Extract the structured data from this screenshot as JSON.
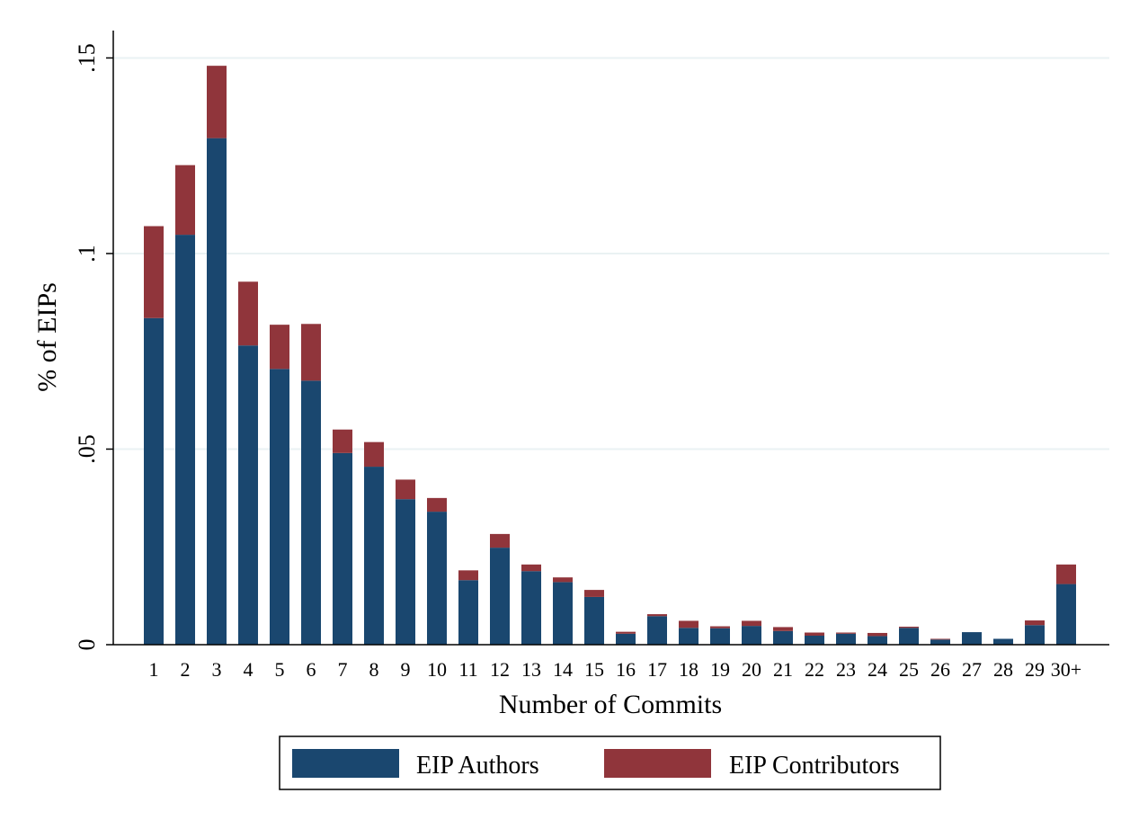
{
  "chart_data": {
    "type": "bar",
    "stacked": true,
    "categories": [
      "1",
      "2",
      "3",
      "4",
      "5",
      "6",
      "7",
      "8",
      "9",
      "10",
      "11",
      "12",
      "13",
      "14",
      "15",
      "16",
      "17",
      "18",
      "19",
      "20",
      "21",
      "22",
      "23",
      "24",
      "25",
      "26",
      "27",
      "28",
      "29",
      "30+"
    ],
    "series": [
      {
        "name": "EIP Authors",
        "color": "#1a476f",
        "values": [
          0.0835,
          0.1048,
          0.1295,
          0.0765,
          0.0705,
          0.0675,
          0.049,
          0.0455,
          0.0372,
          0.034,
          0.0165,
          0.0248,
          0.0188,
          0.016,
          0.0122,
          0.0028,
          0.0073,
          0.0043,
          0.0042,
          0.0048,
          0.0035,
          0.0023,
          0.0028,
          0.0022,
          0.0043,
          0.0013,
          0.0032,
          0.0015,
          0.005,
          0.0155
        ]
      },
      {
        "name": "EIP Contributors",
        "color": "#90353b",
        "values": [
          0.0235,
          0.0178,
          0.0185,
          0.0163,
          0.0113,
          0.0145,
          0.006,
          0.0063,
          0.005,
          0.0035,
          0.0025,
          0.0035,
          0.0017,
          0.0012,
          0.0018,
          0.0005,
          0.0005,
          0.0018,
          0.0005,
          0.0013,
          0.001,
          0.0008,
          0.0003,
          0.0008,
          0.0003,
          0.0002,
          0.0,
          0.0,
          0.0012,
          0.005
        ]
      }
    ],
    "xlabel": "Number of Commits",
    "ylabel": "% of EIPs",
    "ylim": [
      0,
      0.157
    ],
    "yticks": [
      0,
      0.05,
      0.1,
      0.15
    ],
    "ytick_labels": [
      "0",
      ".05",
      ".1",
      ".15"
    ],
    "grid": true,
    "gridline_color": "#eaf2f3",
    "legend_position": "bottom"
  }
}
